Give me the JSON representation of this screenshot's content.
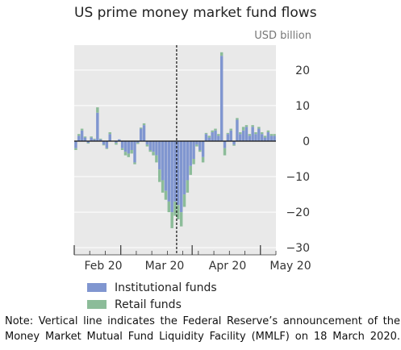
{
  "unit_label": "USD billion",
  "note": "Note: Vertical line indicates the Federal Reserve’s announcement of the Money Market Mutual Fund Liquidity Facility (MMLF) on 18 March 2020.",
  "chart_data": {
    "type": "bar",
    "stacked": true,
    "title": "US prime money market fund flows",
    "ylabel": "USD billion",
    "ylim": [
      -32,
      27
    ],
    "yticks": [
      -30,
      -20,
      -10,
      0,
      10,
      20
    ],
    "grid": true,
    "legend_position": "bottom-left",
    "x_tick_labels": [
      "Feb 20",
      "Mar 20",
      "Apr 20",
      "May 20"
    ],
    "event_line": {
      "x_index": 33,
      "style": "dashed"
    },
    "colors": {
      "institutional": "#8096d0",
      "retail": "#8cbc99",
      "background": "#e9e9e9"
    },
    "series": [
      {
        "name": "Institutional funds",
        "values": [
          -2,
          1.5,
          3,
          1,
          -0.5,
          1,
          0.5,
          8,
          0.5,
          -1,
          -2,
          2,
          0,
          -0.5,
          0.5,
          -2,
          -3,
          -3.5,
          -2.5,
          -6,
          -0.5,
          3.5,
          4.5,
          -1,
          -2.5,
          -3,
          -4,
          -8,
          -11,
          -14,
          -17,
          -20,
          -17,
          -18,
          -20,
          -15,
          -11,
          -7,
          -5,
          -1,
          -2.5,
          -4.5,
          2,
          1,
          2.5,
          3,
          1.5,
          24,
          -2,
          2,
          3,
          -1,
          6,
          2,
          3,
          4,
          1.5,
          4,
          2,
          3.5,
          2,
          1,
          2.5,
          1.5,
          1.5
        ],
        "interpolated": true
      },
      {
        "name": "Retail funds",
        "values": [
          -0.5,
          0.5,
          0.5,
          0.3,
          -0.2,
          0.3,
          0.2,
          1.5,
          0.2,
          -0.2,
          -0.2,
          0.5,
          0,
          -0.5,
          0,
          -0.5,
          -1,
          -1,
          -1,
          -0.5,
          -0.3,
          0.3,
          0.5,
          -0.5,
          -0.5,
          -1,
          -2,
          -3.5,
          -3.5,
          -2.5,
          -3,
          -4.5,
          -4,
          -4,
          -4,
          -3.5,
          -3.5,
          -2.5,
          -1.5,
          -0.5,
          -0.5,
          -1.5,
          0.3,
          0.5,
          0.5,
          0.5,
          0.5,
          1,
          -2,
          0.3,
          0.5,
          -0.3,
          0.5,
          0.5,
          1,
          0.5,
          0.5,
          0.5,
          0.5,
          0.5,
          0.5,
          0.5,
          0.5,
          0.5,
          0.5
        ],
        "interpolated": true
      }
    ]
  }
}
